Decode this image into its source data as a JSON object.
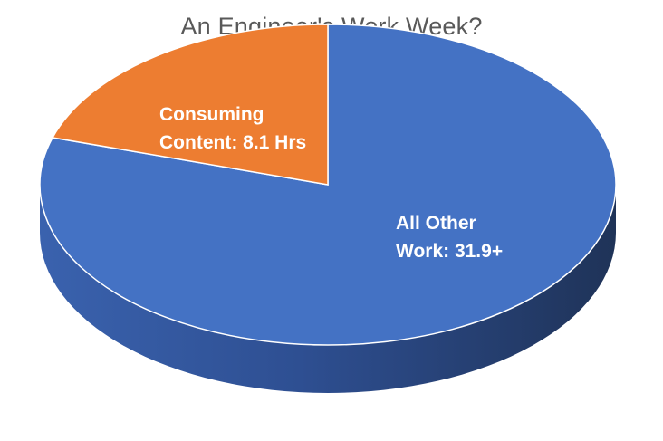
{
  "chart_data": {
    "type": "pie",
    "title": "An Engineer's Work Week?",
    "style": "3d",
    "slices": [
      {
        "label_line1": "Consuming",
        "label_line2": "Content: 8.1 Hrs",
        "value": 8.1,
        "color": "#ED7D31"
      },
      {
        "label_line1": "All Other",
        "label_line2": "Work: 31.9+",
        "value": 31.9,
        "color": "#4472C4"
      }
    ],
    "side_colors": {
      "light": "#3A62AE",
      "dark": "#1F3358"
    },
    "legend": "none"
  }
}
